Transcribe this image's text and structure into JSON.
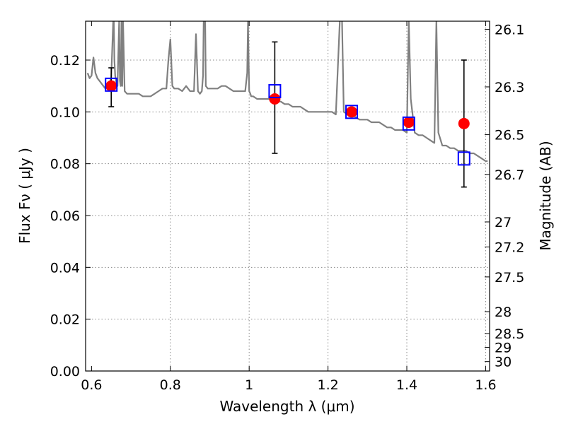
{
  "chart_data": {
    "type": "line",
    "title": "",
    "xlabel": "Wavelength  λ (μm)",
    "ylabel": "Flux  Fν  ( μJy )",
    "ylabel2": "Magnitude (AB)",
    "xlim": [
      0.585,
      1.61
    ],
    "ylim": [
      0.0,
      0.135
    ],
    "grid": true,
    "x_ticks": [
      0.6,
      0.8,
      1.0,
      1.2,
      1.4,
      1.6
    ],
    "x_tick_labels": [
      "0.6",
      "0.8",
      "1",
      "1.2",
      "1.4",
      "1.6"
    ],
    "y_ticks": [
      0.0,
      0.02,
      0.04,
      0.06,
      0.08,
      0.1,
      0.12
    ],
    "y_tick_labels": [
      "0.00",
      "0.02",
      "0.04",
      "0.06",
      "0.08",
      "0.10",
      "0.12"
    ],
    "mag_ticks": [
      {
        "mag": 26.1,
        "label": "26.1"
      },
      {
        "mag": 26.3,
        "label": "26.3"
      },
      {
        "mag": 26.5,
        "label": "26.5"
      },
      {
        "mag": 26.7,
        "label": "26.7"
      },
      {
        "mag": 27.0,
        "label": "27"
      },
      {
        "mag": 27.2,
        "label": "27.2"
      },
      {
        "mag": 27.5,
        "label": "27.5"
      },
      {
        "mag": 28.0,
        "label": "28"
      },
      {
        "mag": 28.5,
        "label": "28.5"
      },
      {
        "mag": 29.0,
        "label": "29"
      },
      {
        "mag": 30.0,
        "label": "30"
      }
    ],
    "colors": {
      "template": "#808080",
      "observed": "#ff0000",
      "model": "#0000ff",
      "errorbar": "#000000",
      "grid": "#888888"
    },
    "series": [
      {
        "kind": "template_spectrum",
        "x": [
          0.59,
          0.595,
          0.6,
          0.605,
          0.61,
          0.615,
          0.62,
          0.625,
          0.63,
          0.635,
          0.64,
          0.645,
          0.65,
          0.655,
          0.656,
          0.658,
          0.66,
          0.662,
          0.664,
          0.666,
          0.67,
          0.672,
          0.674,
          0.676,
          0.678,
          0.68,
          0.684,
          0.69,
          0.7,
          0.71,
          0.72,
          0.73,
          0.74,
          0.75,
          0.76,
          0.77,
          0.78,
          0.79,
          0.795,
          0.8,
          0.805,
          0.81,
          0.82,
          0.83,
          0.84,
          0.85,
          0.86,
          0.865,
          0.87,
          0.875,
          0.88,
          0.883,
          0.885,
          0.888,
          0.89,
          0.895,
          0.9,
          0.91,
          0.92,
          0.93,
          0.94,
          0.95,
          0.96,
          0.97,
          0.98,
          0.99,
          0.995,
          0.997,
          1.0,
          1.003,
          1.005,
          1.01,
          1.02,
          1.03,
          1.04,
          1.05,
          1.06,
          1.07,
          1.08,
          1.09,
          1.1,
          1.11,
          1.12,
          1.13,
          1.14,
          1.15,
          1.16,
          1.17,
          1.18,
          1.19,
          1.2,
          1.21,
          1.22,
          1.23,
          1.235,
          1.24,
          1.25,
          1.26,
          1.27,
          1.28,
          1.29,
          1.3,
          1.31,
          1.32,
          1.33,
          1.34,
          1.35,
          1.36,
          1.37,
          1.38,
          1.39,
          1.4,
          1.405,
          1.41,
          1.42,
          1.43,
          1.44,
          1.45,
          1.46,
          1.47,
          1.475,
          1.48,
          1.49,
          1.5,
          1.51,
          1.52,
          1.53,
          1.54,
          1.55,
          1.56,
          1.57,
          1.58,
          1.59,
          1.6,
          1.605
        ],
        "y": [
          0.115,
          0.113,
          0.114,
          0.121,
          0.115,
          0.113,
          0.112,
          0.111,
          0.11,
          0.109,
          0.11,
          0.111,
          0.113,
          0.135,
          0.14,
          0.12,
          0.114,
          0.112,
          0.111,
          0.11,
          0.135,
          0.112,
          0.11,
          0.135,
          0.11,
          0.135,
          0.108,
          0.107,
          0.107,
          0.107,
          0.107,
          0.106,
          0.106,
          0.106,
          0.107,
          0.108,
          0.109,
          0.109,
          0.12,
          0.128,
          0.11,
          0.109,
          0.109,
          0.108,
          0.11,
          0.108,
          0.108,
          0.13,
          0.108,
          0.107,
          0.108,
          0.114,
          0.14,
          0.14,
          0.11,
          0.109,
          0.109,
          0.109,
          0.109,
          0.11,
          0.11,
          0.109,
          0.108,
          0.108,
          0.108,
          0.108,
          0.115,
          0.135,
          0.108,
          0.107,
          0.106,
          0.106,
          0.105,
          0.105,
          0.105,
          0.105,
          0.104,
          0.104,
          0.104,
          0.103,
          0.103,
          0.102,
          0.102,
          0.102,
          0.101,
          0.1,
          0.1,
          0.1,
          0.1,
          0.1,
          0.1,
          0.1,
          0.099,
          0.135,
          0.14,
          0.1,
          0.099,
          0.099,
          0.098,
          0.097,
          0.097,
          0.097,
          0.096,
          0.096,
          0.096,
          0.095,
          0.094,
          0.094,
          0.093,
          0.093,
          0.093,
          0.092,
          0.135,
          0.105,
          0.092,
          0.091,
          0.091,
          0.09,
          0.089,
          0.088,
          0.135,
          0.092,
          0.087,
          0.087,
          0.086,
          0.086,
          0.085,
          0.085,
          0.085,
          0.084,
          0.084,
          0.083,
          0.082,
          0.081,
          0.081
        ]
      },
      {
        "kind": "observed_photometry",
        "x": [
          0.65,
          1.065,
          1.26,
          1.405,
          1.545
        ],
        "y": [
          0.11,
          0.105,
          0.1,
          0.096,
          0.0955
        ],
        "yerr_low": [
          0.102,
          0.084,
          0.1,
          0.096,
          0.071
        ],
        "yerr_high": [
          0.117,
          0.127,
          0.1,
          0.096,
          0.12
        ]
      },
      {
        "kind": "model_photometry",
        "x": [
          0.65,
          1.065,
          1.26,
          1.405,
          1.545
        ],
        "y": [
          0.1105,
          0.108,
          0.1,
          0.0955,
          0.082
        ]
      }
    ]
  }
}
